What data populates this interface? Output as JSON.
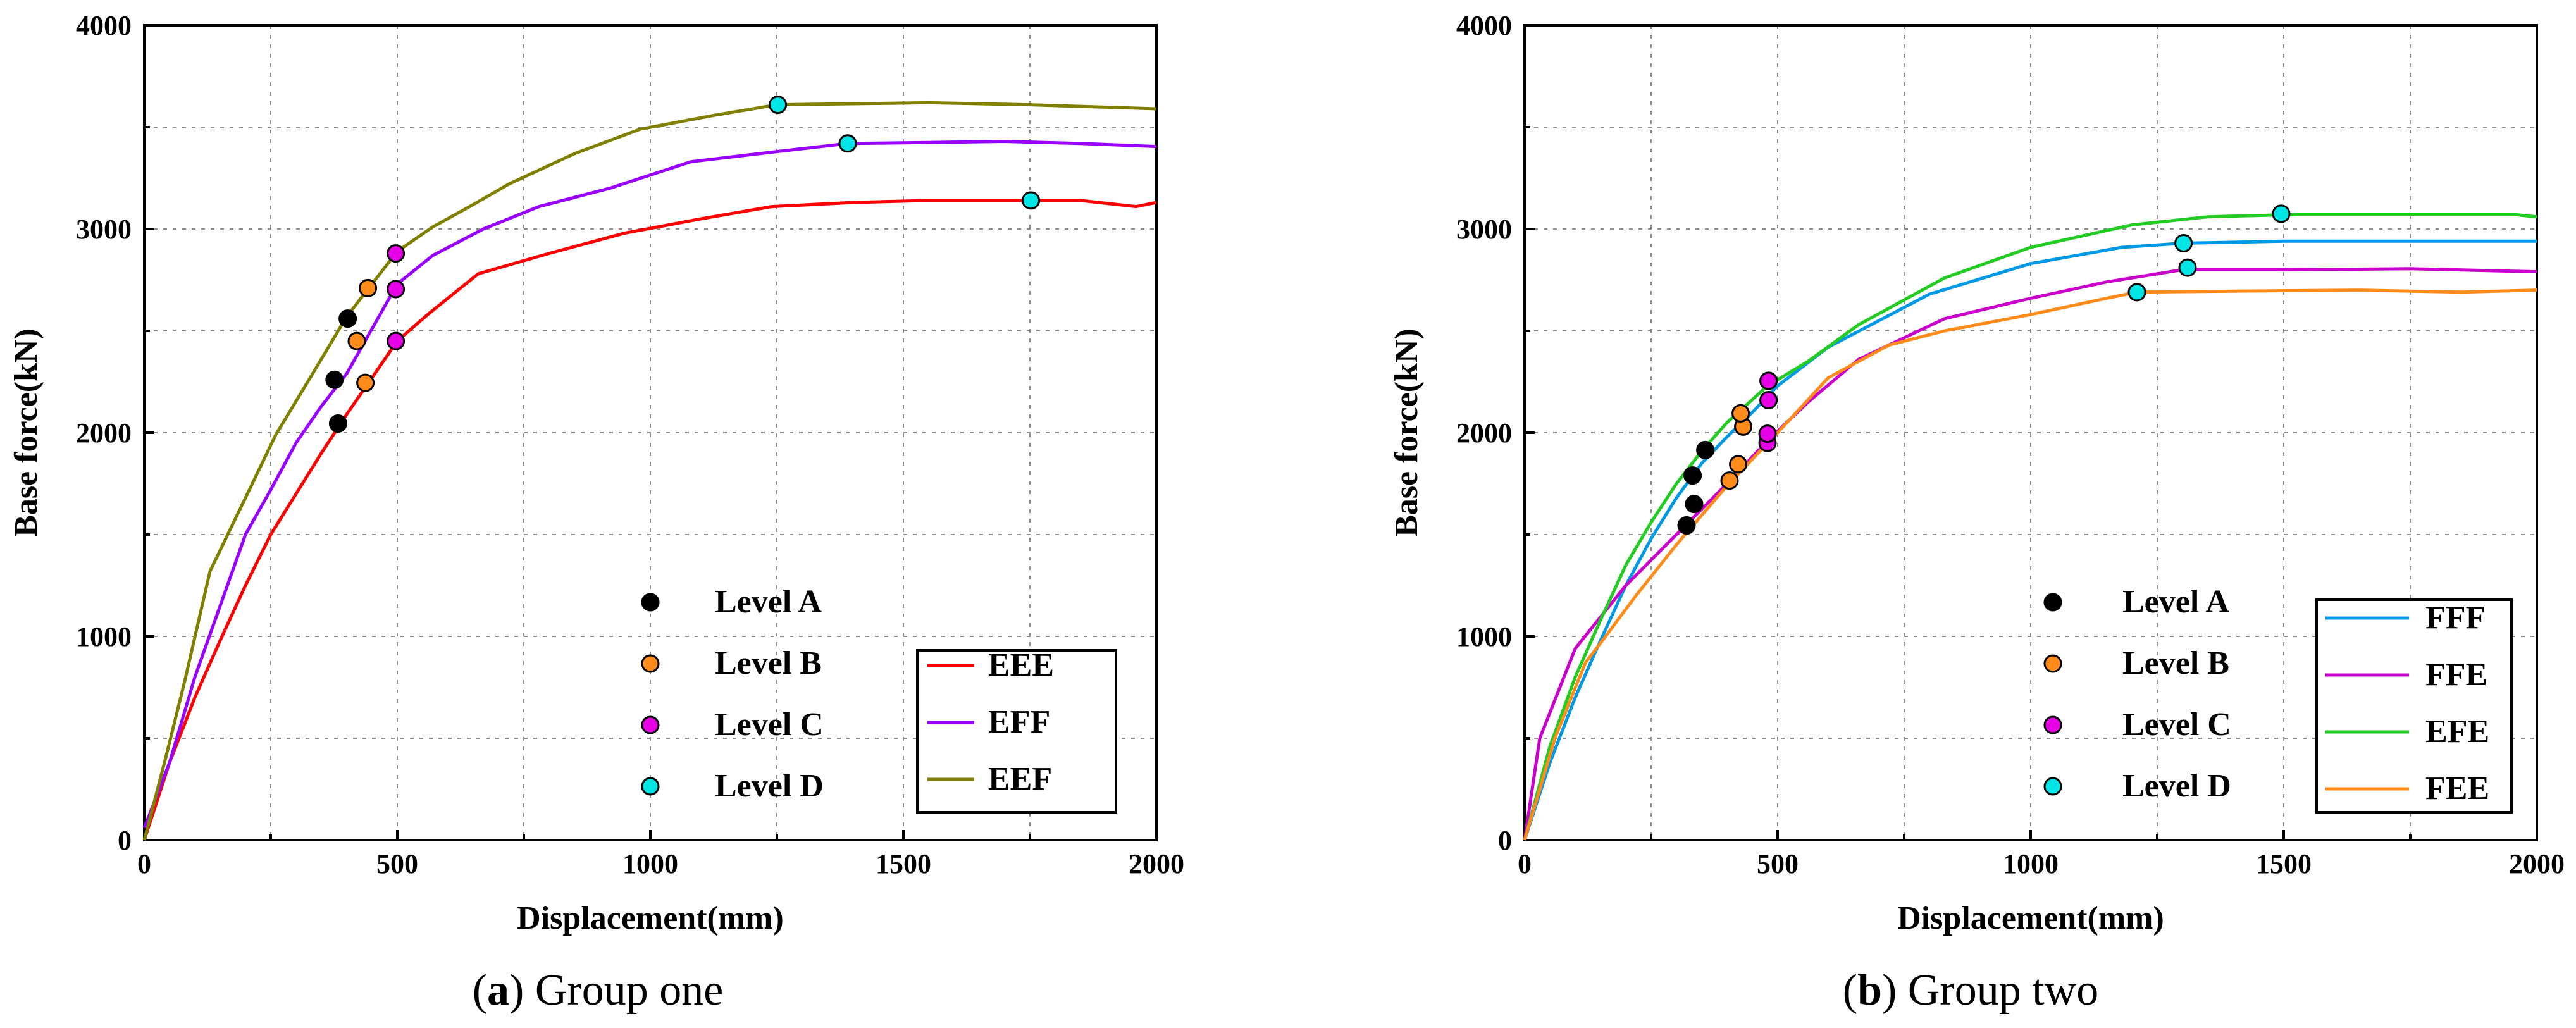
{
  "chart_data": [
    {
      "type": "line",
      "caption_letter": "a",
      "caption_text": "Group one",
      "xlabel": "Displacement(mm)",
      "ylabel": "Base force(kN)",
      "xlim": [
        0,
        2000
      ],
      "ylim": [
        0,
        4000
      ],
      "xticks": [
        0,
        500,
        1000,
        1500,
        2000
      ],
      "yticks": [
        0,
        1000,
        2000,
        3000,
        4000
      ],
      "grid": true,
      "series": [
        {
          "name": "EEE",
          "color": "#ff0000",
          "points": [
            [
              0,
              0
            ],
            [
              50,
              380
            ],
            [
              100,
              700
            ],
            [
              150,
              980
            ],
            [
              200,
              1250
            ],
            [
              250,
              1500
            ],
            [
              300,
              1700
            ],
            [
              350,
              1900
            ],
            [
              400,
              2090
            ],
            [
              450,
              2270
            ],
            [
              500,
              2450
            ],
            [
              560,
              2580
            ],
            [
              660,
              2780
            ],
            [
              800,
              2880
            ],
            [
              950,
              2980
            ],
            [
              1100,
              3050
            ],
            [
              1240,
              3110
            ],
            [
              1400,
              3130
            ],
            [
              1550,
              3140
            ],
            [
              1700,
              3140
            ],
            [
              1850,
              3140
            ],
            [
              1960,
              3110
            ],
            [
              2000,
              3130
            ]
          ]
        },
        {
          "name": "EFF",
          "color": "#9900ff",
          "points": [
            [
              0,
              60
            ],
            [
              50,
              380
            ],
            [
              100,
              800
            ],
            [
              150,
              1150
            ],
            [
              200,
              1500
            ],
            [
              250,
              1720
            ],
            [
              300,
              1950
            ],
            [
              350,
              2130
            ],
            [
              400,
              2290
            ],
            [
              450,
              2510
            ],
            [
              500,
              2730
            ],
            [
              570,
              2870
            ],
            [
              670,
              3000
            ],
            [
              780,
              3110
            ],
            [
              920,
              3200
            ],
            [
              1080,
              3330
            ],
            [
              1250,
              3380
            ],
            [
              1390,
              3420
            ],
            [
              1550,
              3425
            ],
            [
              1700,
              3430
            ],
            [
              1850,
              3420
            ],
            [
              2000,
              3405
            ]
          ]
        },
        {
          "name": "EEF",
          "color": "#808000",
          "points": [
            [
              0,
              0
            ],
            [
              40,
              380
            ],
            [
              80,
              780
            ],
            [
              130,
              1320
            ],
            [
              200,
              1680
            ],
            [
              260,
              1990
            ],
            [
              340,
              2320
            ],
            [
              400,
              2570
            ],
            [
              450,
              2730
            ],
            [
              500,
              2890
            ],
            [
              570,
              3010
            ],
            [
              650,
              3120
            ],
            [
              720,
              3220
            ],
            [
              850,
              3370
            ],
            [
              980,
              3490
            ],
            [
              1130,
              3560
            ],
            [
              1250,
              3610
            ],
            [
              1400,
              3615
            ],
            [
              1550,
              3620
            ],
            [
              1750,
              3610
            ],
            [
              2000,
              3590
            ]
          ]
        }
      ],
      "markers": [
        {
          "level": "Level A",
          "color": "#000000",
          "points": [
            [
              383,
              2045
            ],
            [
              376,
              2260
            ],
            [
              402,
              2560
            ]
          ]
        },
        {
          "level": "Level B",
          "color": "#ff8c1a",
          "points": [
            [
              437,
              2245
            ],
            [
              420,
              2450
            ],
            [
              442,
              2710
            ]
          ]
        },
        {
          "level": "Level C",
          "color": "#e600e6",
          "points": [
            [
              497,
              2450
            ],
            [
              497,
              2705
            ],
            [
              497,
              2880
            ]
          ]
        },
        {
          "level": "Level D",
          "color": "#00e6e6",
          "points": [
            [
              1752,
              3140
            ],
            [
              1390,
              3420
            ],
            [
              1252,
              3610
            ]
          ]
        }
      ],
      "legend_levels": [
        "Level A",
        "Level B",
        "Level C",
        "Level D"
      ],
      "legend_series": [
        "EEE",
        "EFF",
        "EEF"
      ]
    },
    {
      "type": "line",
      "caption_letter": "b",
      "caption_text": "Group two",
      "xlabel": "Displacement(mm)",
      "ylabel": "Base force(kN)",
      "xlim": [
        0,
        2000
      ],
      "ylim": [
        0,
        4000
      ],
      "xticks": [
        0,
        500,
        1000,
        1500,
        2000
      ],
      "yticks": [
        0,
        1000,
        2000,
        3000,
        4000
      ],
      "grid": true,
      "series": [
        {
          "name": "FFF",
          "color": "#0099e6",
          "points": [
            [
              0,
              0
            ],
            [
              50,
              380
            ],
            [
              100,
              700
            ],
            [
              150,
              980
            ],
            [
              200,
              1250
            ],
            [
              250,
              1480
            ],
            [
              300,
              1680
            ],
            [
              350,
              1850
            ],
            [
              400,
              1980
            ],
            [
              450,
              2100
            ],
            [
              500,
              2230
            ],
            [
              600,
              2420
            ],
            [
              800,
              2680
            ],
            [
              1000,
              2830
            ],
            [
              1180,
              2910
            ],
            [
              1300,
              2930
            ],
            [
              1500,
              2940
            ],
            [
              1700,
              2940
            ],
            [
              2000,
              2940
            ]
          ]
        },
        {
          "name": "FFE",
          "color": "#cc00cc",
          "points": [
            [
              0,
              0
            ],
            [
              30,
              500
            ],
            [
              100,
              940
            ],
            [
              200,
              1250
            ],
            [
              300,
              1500
            ],
            [
              400,
              1750
            ],
            [
              480,
              1960
            ],
            [
              560,
              2150
            ],
            [
              660,
              2360
            ],
            [
              830,
              2560
            ],
            [
              1000,
              2660
            ],
            [
              1150,
              2740
            ],
            [
              1300,
              2800
            ],
            [
              1500,
              2800
            ],
            [
              1750,
              2805
            ],
            [
              2000,
              2790
            ]
          ]
        },
        {
          "name": "EFE",
          "color": "#22cc22",
          "points": [
            [
              0,
              0
            ],
            [
              50,
              460
            ],
            [
              100,
              800
            ],
            [
              150,
              1080
            ],
            [
              200,
              1350
            ],
            [
              250,
              1560
            ],
            [
              300,
              1750
            ],
            [
              350,
              1910
            ],
            [
              400,
              2050
            ],
            [
              480,
              2230
            ],
            [
              560,
              2350
            ],
            [
              660,
              2530
            ],
            [
              830,
              2760
            ],
            [
              1000,
              2910
            ],
            [
              1200,
              3020
            ],
            [
              1350,
              3060
            ],
            [
              1500,
              3070
            ],
            [
              1750,
              3070
            ],
            [
              1960,
              3070
            ],
            [
              2000,
              3060
            ]
          ]
        },
        {
          "name": "FEE",
          "color": "#ff8c1a",
          "points": [
            [
              0,
              0
            ],
            [
              60,
              500
            ],
            [
              120,
              870
            ],
            [
              160,
              1000
            ],
            [
              220,
              1200
            ],
            [
              300,
              1450
            ],
            [
              400,
              1740
            ],
            [
              500,
              2000
            ],
            [
              600,
              2270
            ],
            [
              720,
              2430
            ],
            [
              830,
              2500
            ],
            [
              1000,
              2580
            ],
            [
              1150,
              2660
            ],
            [
              1210,
              2690
            ],
            [
              1400,
              2695
            ],
            [
              1650,
              2700
            ],
            [
              1850,
              2690
            ],
            [
              2000,
              2700
            ]
          ]
        }
      ],
      "markers": [
        {
          "level": "Level A",
          "color": "#000000",
          "points": [
            [
              320,
              1545
            ],
            [
              335,
              1650
            ],
            [
              332,
              1790
            ],
            [
              357,
              1915
            ]
          ]
        },
        {
          "level": "Level B",
          "color": "#ff8c1a",
          "points": [
            [
              405,
              1765
            ],
            [
              422,
              1845
            ],
            [
              432,
              2030
            ],
            [
              427,
              2095
            ]
          ]
        },
        {
          "level": "Level C",
          "color": "#e600e6",
          "points": [
            [
              480,
              1950
            ],
            [
              480,
              1995
            ],
            [
              482,
              2160
            ],
            [
              482,
              2255
            ]
          ]
        },
        {
          "level": "Level D",
          "color": "#00e6e6",
          "points": [
            [
              1210,
              2690
            ],
            [
              1310,
              2810
            ],
            [
              1302,
              2930
            ],
            [
              1495,
              3075
            ]
          ]
        }
      ],
      "legend_levels": [
        "Level A",
        "Level B",
        "Level C",
        "Level D"
      ],
      "legend_series": [
        "FFF",
        "FFE",
        "EFE",
        "FEE"
      ]
    }
  ]
}
